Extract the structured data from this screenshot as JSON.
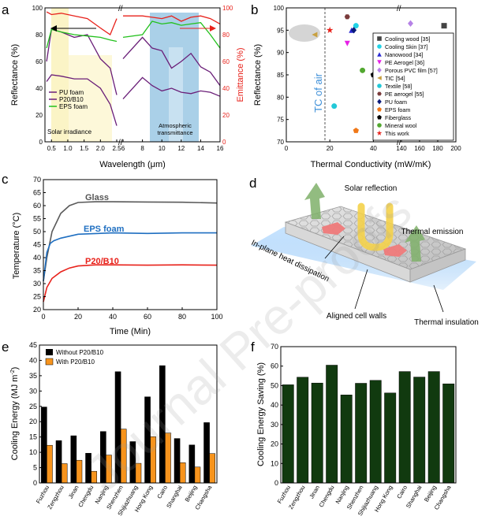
{
  "watermark": "Journal Pre-proofs",
  "colors": {
    "red": "#e8221b",
    "purple": "#6a1e78",
    "green": "#22c01c",
    "black": "#000000",
    "orange": "#f7941d",
    "darkgreen": "#113a0f",
    "lightblue": "#8ec0e0",
    "blueline": "#1f6fc1"
  },
  "chart_data": [
    {
      "panel": "a",
      "type": "line",
      "xlabel": "Wavelength (μm)",
      "ylabel": "Reflectance (%)",
      "y2label": "Emittance (%)",
      "ylim": [
        0,
        100
      ],
      "y2lim": [
        0,
        100
      ],
      "xticks": [
        "0.5",
        "1.0",
        "1.5",
        "2.0",
        "2.5",
        "6",
        "8",
        "10",
        "12",
        "14",
        "16"
      ],
      "yticks": [
        "0",
        "20",
        "40",
        "60",
        "80",
        "100"
      ],
      "annotations": [
        "Solar irradiance",
        "Atmospheric transmittance"
      ],
      "series": [
        {
          "name": "PU foam",
          "axis": "left",
          "x": [
            0.35,
            0.5,
            0.8,
            1.2,
            1.6,
            2.0,
            2.3,
            2.5,
            6,
            8,
            9,
            10,
            11,
            12,
            13,
            14,
            15,
            16
          ],
          "values": [
            45,
            50,
            49,
            47,
            47,
            40,
            28,
            12,
            32,
            48,
            42,
            38,
            40,
            37,
            36,
            38,
            37,
            34
          ]
        },
        {
          "name": "P20/B10",
          "axis": "left",
          "x": [
            0.35,
            0.5,
            0.8,
            1.2,
            1.6,
            2.0,
            2.3,
            2.5,
            6,
            8,
            9,
            10,
            11,
            12,
            13,
            14,
            15,
            16
          ],
          "values": [
            60,
            84,
            82,
            78,
            80,
            62,
            55,
            35,
            62,
            78,
            70,
            68,
            55,
            60,
            66,
            56,
            52,
            42
          ]
        },
        {
          "name": "EPS foam",
          "axis": "left",
          "x": [
            0.35,
            0.5,
            0.8,
            1.2,
            1.6,
            2.0,
            2.3,
            2.5,
            6,
            8,
            9,
            10,
            11,
            12,
            13,
            14,
            15,
            16
          ],
          "values": [
            70,
            84,
            82,
            80,
            79,
            78,
            76,
            75,
            78,
            80,
            90,
            88,
            89,
            87,
            88,
            89,
            80,
            70
          ]
        },
        {
          "name": "Emittance",
          "axis": "right",
          "x": [
            0.35,
            0.5,
            0.8,
            1.2,
            1.6,
            2.0,
            2.3,
            2.5,
            6,
            8,
            9,
            10,
            11,
            12,
            13,
            14,
            15,
            16
          ],
          "values": [
            97,
            95,
            96,
            94,
            92,
            85,
            80,
            92,
            94,
            94,
            93,
            92,
            94,
            90,
            93,
            94,
            92,
            88
          ]
        }
      ]
    },
    {
      "panel": "b",
      "type": "scatter",
      "xlabel": "Thermal Conductivity (mW/mK)",
      "ylabel": "Reflectance (%)",
      "xticks": [
        "0",
        "20",
        "40",
        "60",
        "80",
        "100",
        "120",
        "140",
        "160",
        "180",
        "200"
      ],
      "yticks": [
        "70",
        "75",
        "80",
        "85",
        "90",
        "95",
        "100"
      ],
      "annotation": "TC of air",
      "points": [
        {
          "name": "Cooling wood [35]",
          "x": 187,
          "y": 96,
          "color": "#444444",
          "marker": "square"
        },
        {
          "name": "Cooling Skin [37]",
          "x": 32,
          "y": 96,
          "color": "#22d3e6",
          "marker": "circle"
        },
        {
          "name": "Nanowood [34]",
          "x": 30,
          "y": 95,
          "color": "#2a2ad4",
          "marker": "triangle-up"
        },
        {
          "name": "PE Aerogel [36]",
          "x": 28,
          "y": 92,
          "color": "#e620e6",
          "marker": "triangle-down"
        },
        {
          "name": "Porous PVC film [57]",
          "x": 150,
          "y": 96.5,
          "color": "#b682e6",
          "marker": "diamond"
        },
        {
          "name": "TIC [54]",
          "x": 13,
          "y": 94,
          "color": "#c8a040",
          "marker": "triangle-left"
        },
        {
          "name": "Textile [58]",
          "x": 22,
          "y": 78,
          "color": "#22c8d8",
          "marker": "circle"
        },
        {
          "name": "PE aerogel [55]",
          "x": 28,
          "y": 98,
          "color": "#7a3b3b",
          "marker": "hexagon"
        },
        {
          "name": "PU foam",
          "x": 31,
          "y": 95,
          "color": "#0a1a7a",
          "marker": "diamond"
        },
        {
          "name": "EPS foam",
          "x": 32,
          "y": 72.5,
          "color": "#f07818",
          "marker": "pentagon"
        },
        {
          "name": "Fiberglass",
          "x": 40,
          "y": 85,
          "color": "#000000",
          "marker": "pentagon"
        },
        {
          "name": "Mineral wool",
          "x": 35,
          "y": 86,
          "color": "#52a830",
          "marker": "circle"
        },
        {
          "name": "This work",
          "x": 20,
          "y": 95,
          "color": "#e8221b",
          "marker": "star"
        }
      ]
    },
    {
      "panel": "c",
      "type": "line",
      "xlabel": "Time (Min)",
      "ylabel": "Temperature (°C)",
      "xlim": [
        0,
        100
      ],
      "ylim": [
        20,
        70
      ],
      "xticks": [
        "0",
        "20",
        "40",
        "60",
        "80",
        "100"
      ],
      "yticks": [
        "20",
        "25",
        "30",
        "35",
        "40",
        "45",
        "50",
        "55",
        "60",
        "65",
        "70"
      ],
      "series": [
        {
          "name": "Glass",
          "x": [
            0,
            2,
            5,
            10,
            15,
            20,
            30,
            40,
            60,
            80,
            100
          ],
          "values": [
            31,
            40,
            50,
            57,
            60,
            61.2,
            61.5,
            61.5,
            61.4,
            61.3,
            61
          ]
        },
        {
          "name": "EPS foam",
          "x": [
            0,
            2,
            4,
            6,
            10,
            20,
            40,
            60,
            80,
            100
          ],
          "values": [
            31,
            42,
            45.5,
            46.5,
            47.5,
            49,
            49.5,
            49.3,
            49.5,
            49.5
          ]
        },
        {
          "name": "P20/B10",
          "x": [
            0,
            2,
            5,
            10,
            15,
            20,
            30,
            40,
            60,
            80,
            100
          ],
          "values": [
            23,
            28.5,
            32,
            34.5,
            36,
            36.8,
            37.2,
            37.2,
            37.1,
            37.2,
            37.1
          ]
        }
      ]
    },
    {
      "panel": "e",
      "type": "bar",
      "ylabel": "Cooling Energy (MJ m-2)",
      "ylim": [
        0,
        45
      ],
      "yticks": [
        "0",
        "5",
        "10",
        "15",
        "20",
        "25",
        "30",
        "35",
        "40",
        "45"
      ],
      "categories": [
        "Fuzhou",
        "Zengzhou",
        "Jinan",
        "Chengdu",
        "Nanjing",
        "Shenzhen",
        "Shijiazhuang",
        "Hong Kong",
        "Cairo",
        "Shanghai",
        "Beijing",
        "Changsha"
      ],
      "series": [
        {
          "name": "Without P20/B10",
          "color": "#000000",
          "values": [
            24.8,
            13.8,
            15.4,
            9.7,
            16.8,
            36.3,
            13.5,
            28.1,
            38.3,
            14.5,
            12.4,
            19.7
          ]
        },
        {
          "name": "With P20/B10",
          "color": "#f7941d",
          "values": [
            12.3,
            6.3,
            7.4,
            3.8,
            9.1,
            17.6,
            6.4,
            15.1,
            16.3,
            6.6,
            5.2,
            9.6
          ]
        }
      ]
    },
    {
      "panel": "f",
      "type": "bar",
      "ylabel": "Cooling Energy Saving (%)",
      "ylim": [
        0,
        70
      ],
      "yticks": [
        "0",
        "10",
        "20",
        "30",
        "40",
        "50",
        "60",
        "70"
      ],
      "categories": [
        "Fuzhou",
        "Zengzhou",
        "Jinan",
        "Chengdu",
        "Nanjing",
        "Shenzhen",
        "Shijiazhuang",
        "Hong Kong",
        "Cairo",
        "Shanghai",
        "Beijing",
        "Changsha"
      ],
      "series": [
        {
          "name": "Saving",
          "color": "#113a0f",
          "values": [
            50.4,
            54.3,
            51.3,
            60.5,
            45.2,
            51.2,
            52.7,
            46.2,
            57.2,
            54.4,
            57.2,
            50.9
          ]
        }
      ]
    }
  ],
  "panel_d": {
    "labels": [
      "Solar reflection",
      "Thermal emission",
      "In-plane heat dissipation",
      "Aligned cell walls",
      "Thermal insulation"
    ]
  }
}
